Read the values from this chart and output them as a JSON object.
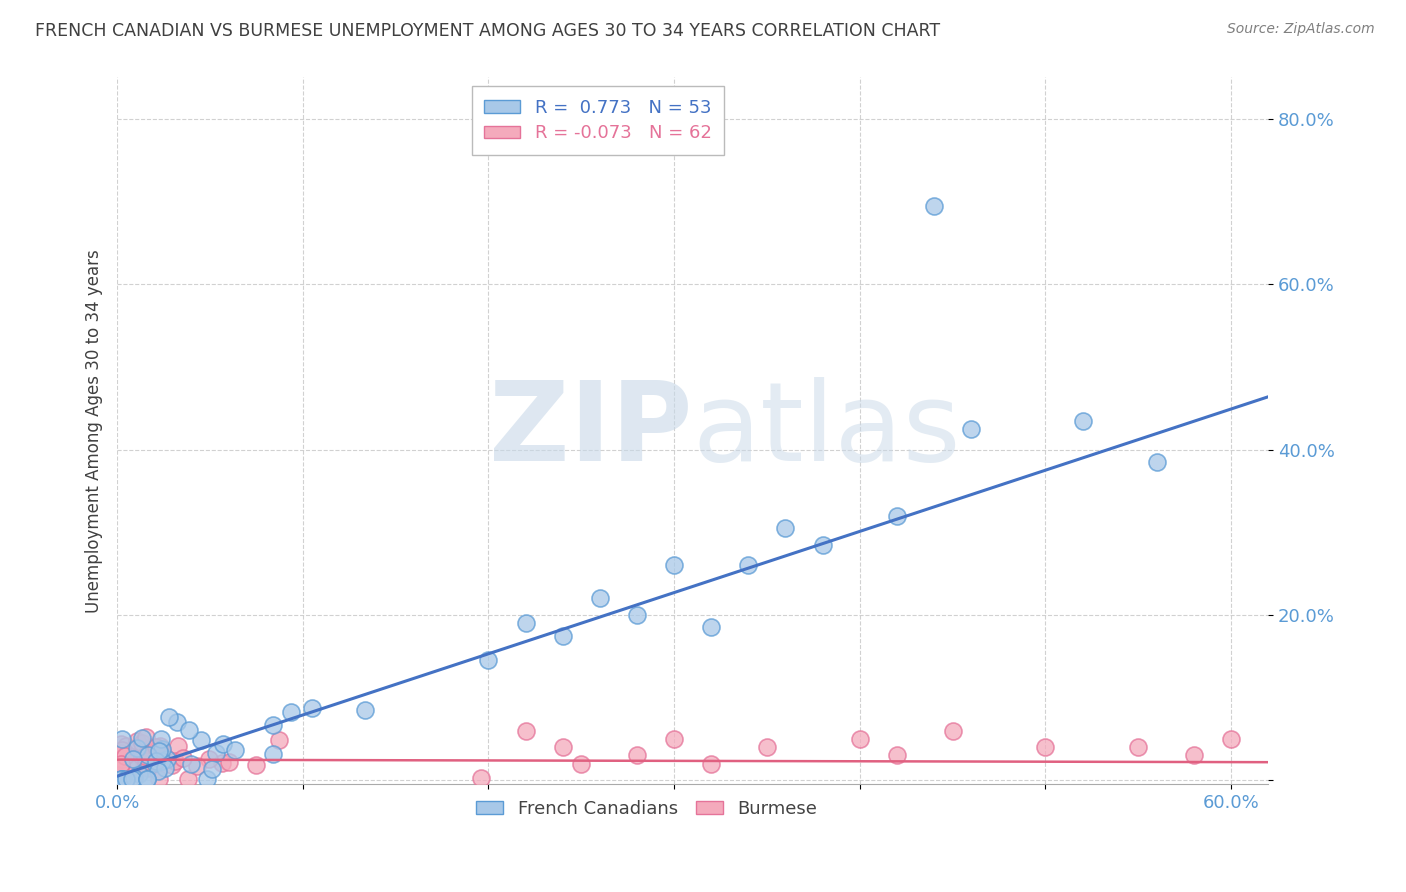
{
  "title": "FRENCH CANADIAN VS BURMESE UNEMPLOYMENT AMONG AGES 30 TO 34 YEARS CORRELATION CHART",
  "source": "Source: ZipAtlas.com",
  "ylabel": "Unemployment Among Ages 30 to 34 years",
  "xlim": [
    0.0,
    0.62
  ],
  "ylim": [
    -0.005,
    0.85
  ],
  "xtick_vals": [
    0.0,
    0.1,
    0.2,
    0.3,
    0.4,
    0.5,
    0.6
  ],
  "xticklabels": [
    "0.0%",
    "",
    "",
    "",
    "",
    "",
    "60.0%"
  ],
  "ytick_vals": [
    0.0,
    0.2,
    0.4,
    0.6,
    0.8
  ],
  "yticklabels": [
    "",
    "20.0%",
    "40.0%",
    "60.0%",
    "80.0%"
  ],
  "french_R": 0.773,
  "french_N": 53,
  "burmese_R": -0.073,
  "burmese_N": 62,
  "french_color": "#A8C8E8",
  "burmese_color": "#F4AABC",
  "french_edge_color": "#5B9BD5",
  "burmese_edge_color": "#E57399",
  "french_line_color": "#4472C4",
  "burmese_line_color": "#E06080",
  "watermark": "ZIPatlas",
  "background_color": "#FFFFFF",
  "tick_color": "#5B9BD5",
  "grid_color": "#CCCCCC",
  "title_color": "#404040",
  "ylabel_color": "#404040",
  "source_color": "#808080"
}
